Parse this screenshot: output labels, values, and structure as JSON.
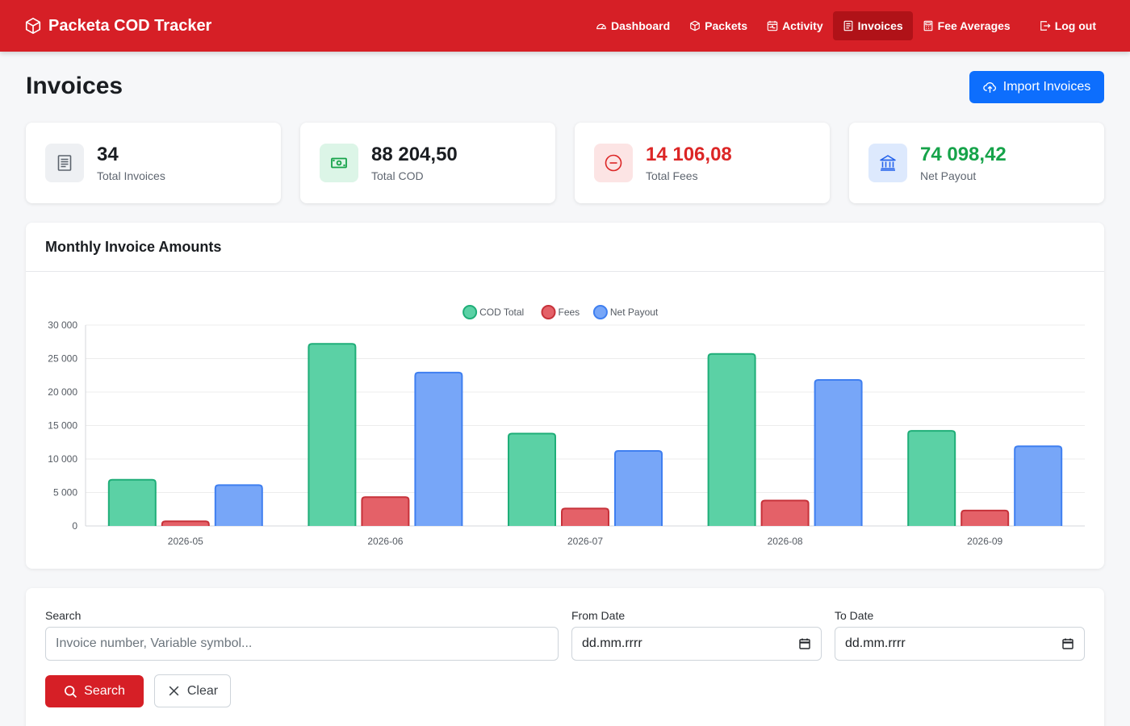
{
  "app": {
    "brand": "Packeta COD Tracker"
  },
  "nav": {
    "items": [
      {
        "label": "Dashboard",
        "icon": "gauge-icon"
      },
      {
        "label": "Packets",
        "icon": "box-icon"
      },
      {
        "label": "Activity",
        "icon": "calendar-activity-icon"
      },
      {
        "label": "Invoices",
        "icon": "invoice-icon",
        "active": true
      },
      {
        "label": "Fee Averages",
        "icon": "calculator-icon"
      }
    ],
    "logout": "Log out"
  },
  "page": {
    "title": "Invoices",
    "import_label": "Import Invoices"
  },
  "stats": [
    {
      "value": "34",
      "label": "Total Invoices",
      "icon": "receipt-icon",
      "color": "#1a1d21"
    },
    {
      "value": "88 204,50",
      "label": "Total COD",
      "icon": "cash-icon",
      "color": "#1a1d21"
    },
    {
      "value": "14 106,08",
      "label": "Total Fees",
      "icon": "dash-circle-icon",
      "color": "#dc2626"
    },
    {
      "value": "74 098,42",
      "label": "Net Payout",
      "icon": "bank-icon",
      "color": "#16a34a"
    }
  ],
  "chart": {
    "title": "Monthly Invoice Amounts"
  },
  "chart_data": {
    "type": "bar",
    "categories": [
      "2026-05",
      "2026-06",
      "2026-07",
      "2026-08",
      "2026-09"
    ],
    "series": [
      {
        "name": "COD Total",
        "values": [
          6900,
          27200,
          13800,
          25700,
          14200
        ],
        "color": "#5bd1a5"
      },
      {
        "name": "Fees",
        "values": [
          700,
          4300,
          2600,
          3800,
          2300
        ],
        "color": "#e46168"
      },
      {
        "name": "Net Payout",
        "values": [
          6100,
          22900,
          11200,
          21800,
          11900
        ],
        "color": "#77a6f8"
      }
    ],
    "yticks": [
      "0",
      "5 000",
      "10 000",
      "15 000",
      "20 000",
      "25 000",
      "30 000"
    ],
    "ylim": [
      0,
      30000
    ],
    "legend": "top-center",
    "grid": true
  },
  "filters": {
    "search_label": "Search",
    "search_placeholder": "Invoice number, Variable symbol...",
    "from_label": "From Date",
    "from_value": "dd.mm.rrrr",
    "to_label": "To Date",
    "to_value": "dd.mm.rrrr",
    "search_button": "Search",
    "clear_button": "Clear"
  }
}
